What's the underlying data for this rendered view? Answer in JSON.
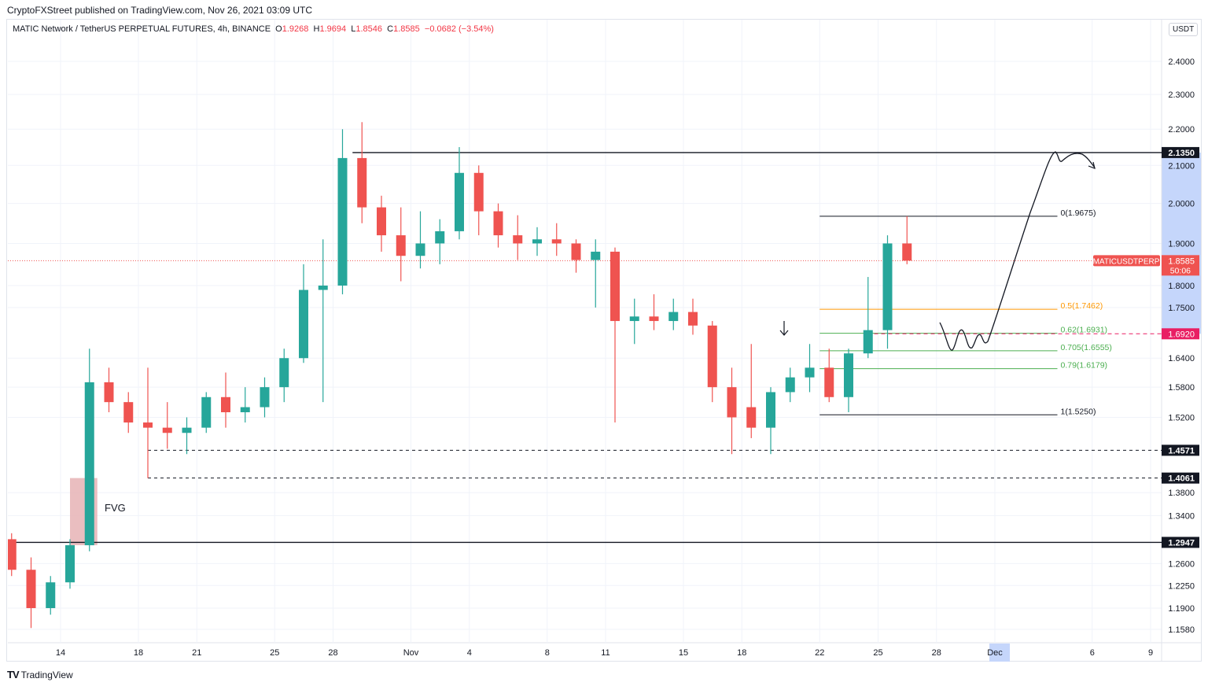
{
  "publish_line": "CryptoFXStreet published on TradingView.com, Nov 26, 2021 03:09 UTC",
  "legend": {
    "symbol": "MATIC Network / TetherUS PERPETUAL FUTURES, 4h, BINANCE",
    "o_label": "O",
    "o": "1.9268",
    "h_label": "H",
    "h": "1.9694",
    "l_label": "L",
    "l": "1.8546",
    "c_label": "C",
    "c": "1.8585",
    "change": "−0.0682 (−3.54%)"
  },
  "currency_unit": "USDT",
  "footer_brand": "TradingView",
  "colors": {
    "up": "#26a69a",
    "down": "#ef5350",
    "fib_05": "#ff9800",
    "fib_green": "#4caf50",
    "price_tag": "#ef5350",
    "target_tag": "#e91e63",
    "highlight": "#c5d6fb",
    "fvg": "#e6b3b5"
  },
  "chart_data": {
    "type": "candlestick",
    "scale": "log",
    "interval_note": "4h",
    "ylim": [
      1.14,
      2.47
    ],
    "grid": true,
    "y_ticks": [
      "2.4000",
      "2.3000",
      "2.2000",
      "2.1000",
      "2.0000",
      "1.9000",
      "1.8000",
      "1.7500",
      "1.6400",
      "1.5800",
      "1.5200",
      "1.3800",
      "1.3400",
      "1.2600",
      "1.2250",
      "1.1900",
      "1.1580"
    ],
    "x_ticks": [
      {
        "label": "14",
        "date": "2021-10-14"
      },
      {
        "label": "18",
        "date": "2021-10-18"
      },
      {
        "label": "21",
        "date": "2021-10-21"
      },
      {
        "label": "25",
        "date": "2021-10-25"
      },
      {
        "label": "28",
        "date": "2021-10-28"
      },
      {
        "label": "Nov",
        "date": "2021-11-01"
      },
      {
        "label": "4",
        "date": "2021-11-04"
      },
      {
        "label": "8",
        "date": "2021-11-08"
      },
      {
        "label": "11",
        "date": "2021-11-11"
      },
      {
        "label": "15",
        "date": "2021-11-15"
      },
      {
        "label": "18",
        "date": "2021-11-18"
      },
      {
        "label": "22",
        "date": "2021-11-22"
      },
      {
        "label": "25",
        "date": "2021-11-25"
      },
      {
        "label": "28",
        "date": "2021-11-28"
      },
      {
        "label": "Dec",
        "date": "2021-12-01"
      },
      {
        "label": "6",
        "date": "2021-12-06"
      },
      {
        "label": "9",
        "date": "2021-12-09"
      }
    ],
    "highlighted_x_tick": "Dec",
    "candles": [
      {
        "date": "2021-10-11",
        "o": 1.3,
        "h": 1.31,
        "l": 1.24,
        "c": 1.25
      },
      {
        "date": "2021-10-12",
        "o": 1.25,
        "h": 1.27,
        "l": 1.16,
        "c": 1.19
      },
      {
        "date": "2021-10-13",
        "o": 1.19,
        "h": 1.24,
        "l": 1.18,
        "c": 1.23
      },
      {
        "date": "2021-10-14",
        "o": 1.23,
        "h": 1.3,
        "l": 1.22,
        "c": 1.29
      },
      {
        "date": "2021-10-15",
        "o": 1.29,
        "h": 1.66,
        "l": 1.28,
        "c": 1.59
      },
      {
        "date": "2021-10-16",
        "o": 1.59,
        "h": 1.62,
        "l": 1.53,
        "c": 1.55
      },
      {
        "date": "2021-10-17",
        "o": 1.55,
        "h": 1.57,
        "l": 1.49,
        "c": 1.51
      },
      {
        "date": "2021-10-18",
        "o": 1.51,
        "h": 1.62,
        "l": 1.406,
        "c": 1.5
      },
      {
        "date": "2021-10-19",
        "o": 1.5,
        "h": 1.55,
        "l": 1.46,
        "c": 1.49
      },
      {
        "date": "2021-10-20",
        "o": 1.49,
        "h": 1.52,
        "l": 1.45,
        "c": 1.5
      },
      {
        "date": "2021-10-21",
        "o": 1.5,
        "h": 1.57,
        "l": 1.49,
        "c": 1.56
      },
      {
        "date": "2021-10-22",
        "o": 1.56,
        "h": 1.61,
        "l": 1.5,
        "c": 1.53
      },
      {
        "date": "2021-10-23",
        "o": 1.53,
        "h": 1.58,
        "l": 1.51,
        "c": 1.54
      },
      {
        "date": "2021-10-24",
        "o": 1.54,
        "h": 1.6,
        "l": 1.52,
        "c": 1.58
      },
      {
        "date": "2021-10-25",
        "o": 1.58,
        "h": 1.66,
        "l": 1.55,
        "c": 1.64
      },
      {
        "date": "2021-10-26",
        "o": 1.64,
        "h": 1.85,
        "l": 1.63,
        "c": 1.79
      },
      {
        "date": "2021-10-27",
        "o": 1.79,
        "h": 1.91,
        "l": 1.55,
        "c": 1.8
      },
      {
        "date": "2021-10-28",
        "o": 1.8,
        "h": 2.2,
        "l": 1.78,
        "c": 2.12
      },
      {
        "date": "2021-10-29",
        "o": 2.12,
        "h": 2.22,
        "l": 1.95,
        "c": 1.99
      },
      {
        "date": "2021-10-30",
        "o": 1.99,
        "h": 2.02,
        "l": 1.88,
        "c": 1.92
      },
      {
        "date": "2021-10-31",
        "o": 1.92,
        "h": 1.99,
        "l": 1.81,
        "c": 1.87
      },
      {
        "date": "2021-11-01",
        "o": 1.87,
        "h": 1.98,
        "l": 1.84,
        "c": 1.9
      },
      {
        "date": "2021-11-02",
        "o": 1.9,
        "h": 1.96,
        "l": 1.85,
        "c": 1.93
      },
      {
        "date": "2021-11-03",
        "o": 1.93,
        "h": 2.15,
        "l": 1.91,
        "c": 2.08
      },
      {
        "date": "2021-11-04",
        "o": 2.08,
        "h": 2.1,
        "l": 1.92,
        "c": 1.98
      },
      {
        "date": "2021-11-05",
        "o": 1.98,
        "h": 2.0,
        "l": 1.89,
        "c": 1.92
      },
      {
        "date": "2021-11-06",
        "o": 1.92,
        "h": 1.97,
        "l": 1.86,
        "c": 1.9
      },
      {
        "date": "2021-11-07",
        "o": 1.9,
        "h": 1.94,
        "l": 1.87,
        "c": 1.91
      },
      {
        "date": "2021-11-08",
        "o": 1.91,
        "h": 1.95,
        "l": 1.87,
        "c": 1.9
      },
      {
        "date": "2021-11-09",
        "o": 1.9,
        "h": 1.91,
        "l": 1.83,
        "c": 1.86
      },
      {
        "date": "2021-11-10",
        "o": 1.86,
        "h": 1.91,
        "l": 1.75,
        "c": 1.88
      },
      {
        "date": "2021-11-11",
        "o": 1.88,
        "h": 1.89,
        "l": 1.51,
        "c": 1.72
      },
      {
        "date": "2021-11-12",
        "o": 1.72,
        "h": 1.77,
        "l": 1.67,
        "c": 1.73
      },
      {
        "date": "2021-11-13",
        "o": 1.73,
        "h": 1.78,
        "l": 1.7,
        "c": 1.72
      },
      {
        "date": "2021-11-14",
        "o": 1.72,
        "h": 1.77,
        "l": 1.7,
        "c": 1.74
      },
      {
        "date": "2021-11-15",
        "o": 1.74,
        "h": 1.77,
        "l": 1.69,
        "c": 1.71
      },
      {
        "date": "2021-11-16",
        "o": 1.71,
        "h": 1.72,
        "l": 1.55,
        "c": 1.58
      },
      {
        "date": "2021-11-17",
        "o": 1.58,
        "h": 1.62,
        "l": 1.45,
        "c": 1.52
      },
      {
        "date": "2021-11-18",
        "o": 1.54,
        "h": 1.67,
        "l": 1.48,
        "c": 1.5
      },
      {
        "date": "2021-11-19",
        "o": 1.5,
        "h": 1.58,
        "l": 1.45,
        "c": 1.57
      },
      {
        "date": "2021-11-20",
        "o": 1.57,
        "h": 1.62,
        "l": 1.55,
        "c": 1.6
      },
      {
        "date": "2021-11-21",
        "o": 1.6,
        "h": 1.67,
        "l": 1.57,
        "c": 1.62
      },
      {
        "date": "2021-11-22",
        "o": 1.62,
        "h": 1.66,
        "l": 1.55,
        "c": 1.56
      },
      {
        "date": "2021-11-23",
        "o": 1.56,
        "h": 1.66,
        "l": 1.53,
        "c": 1.65
      },
      {
        "date": "2021-11-24",
        "o": 1.65,
        "h": 1.82,
        "l": 1.64,
        "c": 1.7
      },
      {
        "date": "2021-11-25",
        "o": 1.7,
        "h": 1.92,
        "l": 1.66,
        "c": 1.9
      },
      {
        "date": "2021-11-26",
        "o": 1.9,
        "h": 1.9675,
        "l": 1.85,
        "c": 1.8585
      }
    ],
    "levels": [
      {
        "price": 2.135,
        "label": "2.1350",
        "style": "solid",
        "from": "2021-10-29"
      },
      {
        "price": 1.4571,
        "label": "1.4571",
        "style": "dashed",
        "from": "2021-10-18"
      },
      {
        "price": 1.4061,
        "label": "1.4061",
        "style": "dashed",
        "from": "2021-10-18"
      },
      {
        "price": 1.2947,
        "label": "1.2947",
        "style": "solid",
        "from": "2021-10-11"
      }
    ],
    "current_price": {
      "symbol": "MATICUSDTPERP",
      "price": 1.8585,
      "label": "1.8585",
      "countdown": "50:06"
    },
    "target_line": {
      "price": 1.692,
      "label": "1.6920",
      "from": "2021-11-25"
    },
    "fvg": {
      "label": "FVG",
      "top": 1.4061,
      "bottom": 1.29,
      "from": "2021-10-14",
      "to": "2021-10-15"
    },
    "fib": {
      "from": "2021-11-22",
      "to": "2021-12-03",
      "levels": [
        {
          "ratio": "0",
          "price": 1.9675,
          "label": "0(1.9675)",
          "color": "#131722"
        },
        {
          "ratio": "0.5",
          "price": 1.7462,
          "label": "0.5(1.7462)",
          "color": "#ff9800"
        },
        {
          "ratio": "0.62",
          "price": 1.6931,
          "label": "0.62(1.6931)",
          "color": "#4caf50"
        },
        {
          "ratio": "0.705",
          "price": 1.6555,
          "label": "0.705(1.6555)",
          "color": "#4caf50"
        },
        {
          "ratio": "0.79",
          "price": 1.6179,
          "label": "0.79(1.6179)",
          "color": "#4caf50"
        },
        {
          "ratio": "1",
          "price": 1.525,
          "label": "1(1.5250)",
          "color": "#131722"
        }
      ]
    },
    "highlighted_price_range": [
      1.692,
      2.135
    ]
  }
}
